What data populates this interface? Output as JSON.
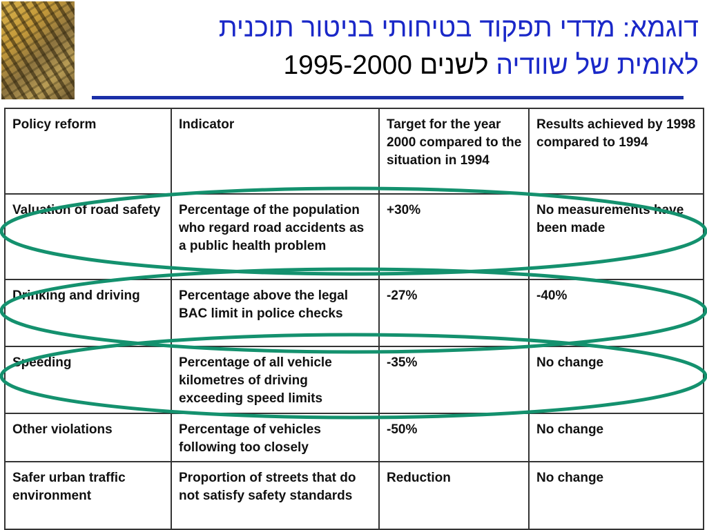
{
  "title": {
    "line1": "דוגמא: מדדי תפקוד בטיחותי בניטור תוכנית",
    "line2_a": "לאומית של שוודיה",
    "line2_b": "לשנים",
    "line2_c": "1995-2000"
  },
  "colors": {
    "title_blue": "#1a28c8",
    "rule": "#1a2fa8",
    "highlight_oval": "#14916e"
  },
  "table": {
    "headers": [
      "Policy reform",
      "Indicator",
      "Target for the year 2000 compared to the situation in 1994",
      "Results achieved by 1998 compared to 1994"
    ],
    "rows": [
      [
        "Valuation of road safety",
        "Percentage of the population who regard road accidents as a public health problem",
        "+30%",
        "No measurements have been made"
      ],
      [
        "Drinking and driving",
        "Percentage above the legal BAC limit in police checks",
        "-27%",
        "-40%"
      ],
      [
        "Speeding",
        "Percentage of all vehicle kilometres of driving exceeding speed limits",
        "-35%",
        "No change"
      ],
      [
        "Other violations",
        "Percentage of vehicles following too closely",
        "-50%",
        "No change"
      ],
      [
        "Safer urban traffic environment",
        "Proportion of streets that do not satisfy safety standards",
        "Reduction",
        "No change"
      ]
    ],
    "highlighted_rows": [
      "Valuation of road safety",
      "Drinking and driving",
      "Speeding"
    ]
  }
}
